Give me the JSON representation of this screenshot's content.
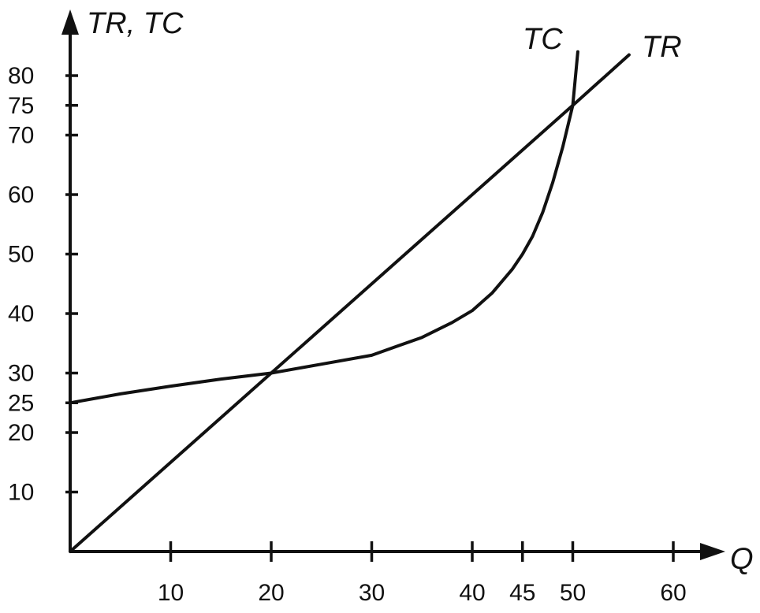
{
  "chart_data": {
    "type": "line",
    "title": "",
    "xlabel": "Q",
    "ylabel": "TR, TC",
    "xlim": [
      0,
      66
    ],
    "ylim": [
      0,
      88
    ],
    "x_ticks": [
      10,
      20,
      30,
      40,
      45,
      50,
      60
    ],
    "y_ticks": [
      10,
      20,
      25,
      30,
      40,
      50,
      60,
      70,
      75,
      80
    ],
    "grid": false,
    "legend": "none",
    "series": [
      {
        "name": "TR",
        "x": [
          0,
          20,
          50,
          55.6
        ],
        "y": [
          0,
          30,
          75,
          83.5
        ]
      },
      {
        "name": "TC",
        "x": [
          0,
          5,
          10,
          15,
          20,
          25,
          30,
          35,
          38,
          40,
          42,
          44,
          45,
          46,
          47,
          48,
          49,
          50,
          50.5
        ],
        "y": [
          25,
          26.5,
          27.8,
          29,
          30,
          31.5,
          33,
          36,
          38.5,
          40.5,
          43.5,
          47.5,
          50,
          53,
          57,
          62,
          68,
          75,
          84
        ]
      }
    ],
    "colors": {
      "line": "#111111"
    }
  }
}
